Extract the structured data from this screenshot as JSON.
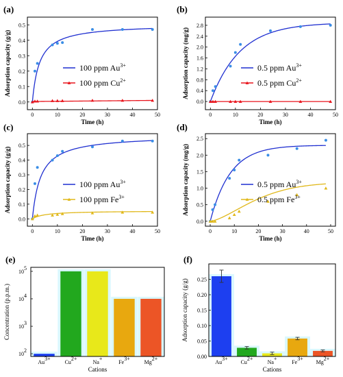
{
  "colors": {
    "blue": "#1f2fd0",
    "blue_point": "#3a8ee6",
    "red": "#e8141c",
    "gold": "#e0b81a",
    "bar_au": "#1d3ff0",
    "bar_cu": "#22a81e",
    "bar_na": "#e8e81a",
    "bar_fe": "#e8a80f",
    "bar_mg": "#ec5526",
    "glow": "#aef0ff"
  },
  "chart_data": [
    {
      "type": "scatter",
      "panel_label": "(a)",
      "xlabel": "Time (h)",
      "ylabel": "Adsorption capacity (g/g)",
      "xlim": [
        -2,
        50
      ],
      "ylim": [
        -0.05,
        0.55
      ],
      "xticks": [
        "0",
        "10",
        "20",
        "30",
        "40",
        "50"
      ],
      "yticks": [
        "0.0",
        "0.1",
        "0.2",
        "0.3",
        "0.4",
        "0.5"
      ],
      "series": [
        {
          "name": "100 ppm Au",
          "name_sup": "3+",
          "color": "blue",
          "x": [
            0,
            1,
            2,
            8,
            10,
            12,
            24,
            36,
            48
          ],
          "y": [
            0.0,
            0.2,
            0.25,
            0.37,
            0.38,
            0.385,
            0.47,
            0.47,
            0.47
          ],
          "fit": {
            "kind": "langmuir",
            "qmax": 0.505,
            "k": 0.35
          }
        },
        {
          "name": "100 ppm Cu",
          "name_sup": "2+",
          "color": "red",
          "x": [
            0,
            1,
            2,
            8,
            10,
            12,
            24,
            36,
            48
          ],
          "y": [
            0.0,
            0.005,
            0.005,
            0.008,
            0.008,
            0.008,
            0.01,
            0.01,
            0.01
          ],
          "fit": {
            "kind": "linear",
            "y0": 0.003,
            "y1": 0.01
          }
        }
      ]
    },
    {
      "type": "scatter",
      "panel_label": "(b)",
      "xlabel": "Time (h)",
      "ylabel": "Adsorption capacity (mg/g)",
      "xlim": [
        -2,
        50
      ],
      "ylim": [
        -0.3,
        3.1
      ],
      "xticks": [
        "0",
        "10",
        "20",
        "30",
        "40",
        "50"
      ],
      "yticks": [
        "0.0",
        "0.4",
        "0.8",
        "1.2",
        "1.6",
        "2.0",
        "2.4",
        "2.8"
      ],
      "series": [
        {
          "name": "0.5 ppm Au",
          "name_sup": "3+",
          "color": "blue",
          "x": [
            0,
            1,
            2,
            8,
            10,
            12,
            24,
            36,
            48
          ],
          "y": [
            0.0,
            0.4,
            0.55,
            1.3,
            1.8,
            2.1,
            2.6,
            2.75,
            2.8
          ],
          "fit": {
            "kind": "first_order",
            "qmax": 2.9,
            "k": 0.085
          }
        },
        {
          "name": "0.5 ppm Cu",
          "name_sup": "2+",
          "color": "red",
          "x": [
            0,
            1,
            2,
            8,
            10,
            12,
            24,
            36,
            48
          ],
          "y": [
            0,
            0,
            0,
            0,
            0,
            0,
            0,
            0,
            0
          ],
          "fit": {
            "kind": "linear",
            "y0": 0.0,
            "y1": 0.0
          }
        }
      ]
    },
    {
      "type": "scatter",
      "panel_label": "(c)",
      "xlabel": "Time (h)",
      "ylabel": "Adsorption capacity (g/g)",
      "xlim": [
        -2,
        50
      ],
      "ylim": [
        -0.05,
        0.58
      ],
      "xticks": [
        "0",
        "10",
        "20",
        "30",
        "40",
        "50"
      ],
      "yticks": [
        "0.0",
        "0.1",
        "0.2",
        "0.3",
        "0.4",
        "0.5"
      ],
      "series": [
        {
          "name": "100 ppm Au",
          "name_sup": "3+",
          "color": "blue",
          "x": [
            0,
            1,
            2,
            8,
            10,
            12,
            24,
            36,
            48
          ],
          "y": [
            0.0,
            0.24,
            0.35,
            0.4,
            0.43,
            0.46,
            0.49,
            0.53,
            0.53
          ],
          "fit": {
            "kind": "langmuir",
            "qmax": 0.57,
            "k": 0.3
          }
        },
        {
          "name": "100 ppm Fe",
          "name_sup": "3+",
          "color": "gold",
          "x": [
            0,
            1,
            2,
            8,
            10,
            12,
            24,
            36,
            48
          ],
          "y": [
            0.0,
            0.02,
            0.025,
            0.025,
            0.03,
            0.035,
            0.04,
            0.045,
            0.045
          ],
          "fit": {
            "kind": "langmuir",
            "qmax": 0.055,
            "k": 0.2
          }
        }
      ]
    },
    {
      "type": "scatter",
      "panel_label": "(d)",
      "xlabel": "Time (h)",
      "ylabel": "Adsorption capacity (mg/g)",
      "xlim": [
        -2,
        52
      ],
      "ylim": [
        -0.15,
        2.65
      ],
      "xticks": [
        "0",
        "10",
        "20",
        "30",
        "40",
        "50"
      ],
      "yticks": [
        "0.0",
        "0.5",
        "1.0",
        "1.5",
        "2.0",
        "2.5"
      ],
      "series": [
        {
          "name": "0.5 ppm Au",
          "name_sup": "3+",
          "color": "blue",
          "x": [
            0,
            1,
            2,
            8,
            10,
            12,
            24,
            36,
            48
          ],
          "y": [
            0.0,
            0.35,
            0.5,
            1.3,
            1.55,
            1.85,
            2.0,
            2.2,
            2.45
          ],
          "fit": {
            "kind": "first_order",
            "qmax": 2.3,
            "k": 0.12
          }
        },
        {
          "name": "0.5 ppm Fe",
          "name_sup": "3+",
          "color": "gold",
          "x": [
            0,
            1,
            2,
            8,
            10,
            12,
            24,
            36,
            48
          ],
          "y": [
            0.0,
            0.0,
            0.0,
            0.1,
            0.2,
            0.3,
            0.6,
            0.8,
            1.0
          ],
          "fit": {
            "kind": "sigmoid",
            "qmax": 1.18,
            "k": 0.045,
            "n": 1.5
          }
        }
      ]
    },
    {
      "type": "bar",
      "panel_label": "(e)",
      "xlabel": "Cations",
      "ylabel": "Concentration (p.p.m.)",
      "yscale": "log",
      "ylim": [
        80,
        140000
      ],
      "ytick_values": [
        100,
        1000,
        10000,
        100000
      ],
      "ytick_base": "10",
      "ytick_exponents": [
        "2",
        "3",
        "4",
        "5"
      ],
      "categories": [
        {
          "base": "Au",
          "sup": "3+"
        },
        {
          "base": "Cu",
          "sup": "2+"
        },
        {
          "base": "Na",
          "sup": "+"
        },
        {
          "base": "Fe",
          "sup": "3+"
        },
        {
          "base": "Mg",
          "sup": "2+"
        }
      ],
      "values": [
        100,
        100000,
        100000,
        10000,
        10000
      ],
      "bar_colors": [
        "bar_au",
        "bar_cu",
        "bar_na",
        "bar_fe",
        "bar_mg"
      ]
    },
    {
      "type": "bar",
      "panel_label": "(f)",
      "xlabel": "Cations",
      "ylabel": "Adsorption capacity (g/g)",
      "ylim": [
        0,
        0.3
      ],
      "yticks": [
        "0.00",
        "0.05",
        "0.10",
        "0.15",
        "0.20",
        "0.25"
      ],
      "categories": [
        {
          "base": "Au",
          "sup": "3+"
        },
        {
          "base": "Cu",
          "sup": "2+"
        },
        {
          "base": "Na",
          "sup": "+"
        },
        {
          "base": "Fe",
          "sup": "3+"
        },
        {
          "base": "Mg",
          "sup": "2+"
        }
      ],
      "values": [
        0.26,
        0.028,
        0.01,
        0.058,
        0.018
      ],
      "errors": [
        0.02,
        0.004,
        0.004,
        0.004,
        0.003
      ],
      "bar_colors": [
        "bar_au",
        "bar_cu",
        "bar_na",
        "bar_fe",
        "bar_mg"
      ]
    }
  ]
}
